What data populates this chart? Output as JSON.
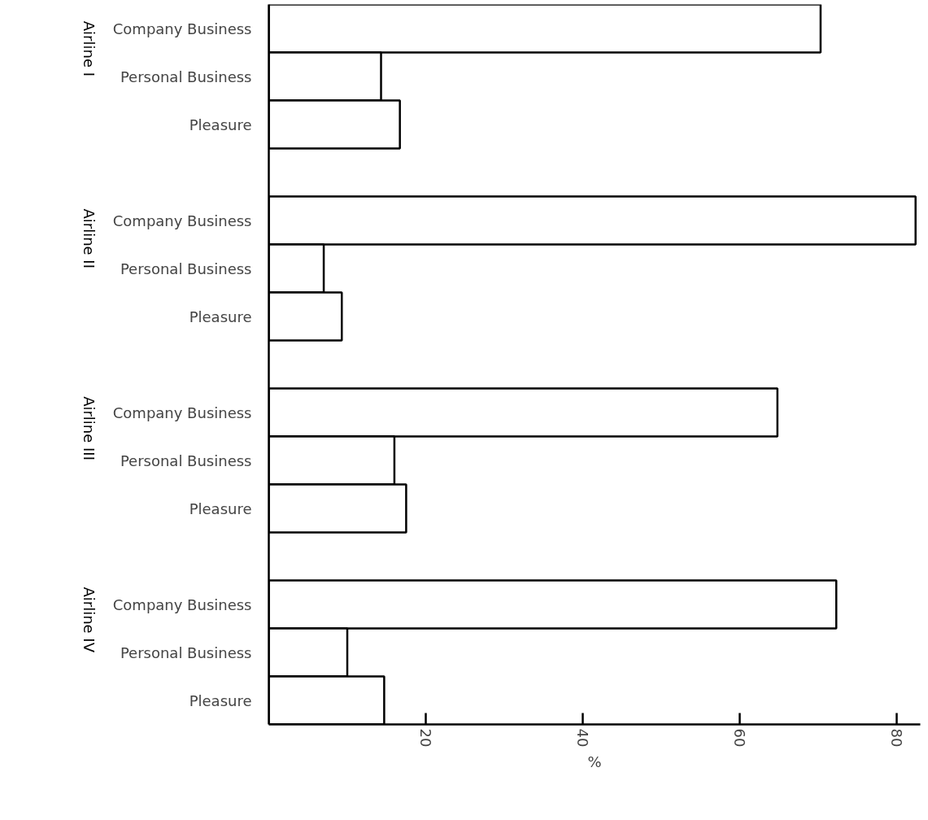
{
  "chart_data": {
    "type": "bar",
    "orientation": "horizontal",
    "categories": [
      "Company Business",
      "Personal Business",
      "Pleasure",
      "Company Business",
      "Personal Business",
      "Pleasure",
      "Company Business",
      "Personal Business",
      "Pleasure",
      "Company Business",
      "Personal Business",
      "Pleasure"
    ],
    "values": [
      70.3,
      14.3,
      16.7,
      82.4,
      7.0,
      9.3,
      64.8,
      16.0,
      17.5,
      72.3,
      10.0,
      14.7
    ],
    "color": "#ffffff",
    "annotations": [
      "Airline I",
      "Airline II",
      "Airline III",
      "Airline IV"
    ],
    "xlabel": "%",
    "xlim": [
      0,
      83
    ],
    "xticks": [
      20,
      40,
      60,
      80
    ],
    "grid": false
  }
}
